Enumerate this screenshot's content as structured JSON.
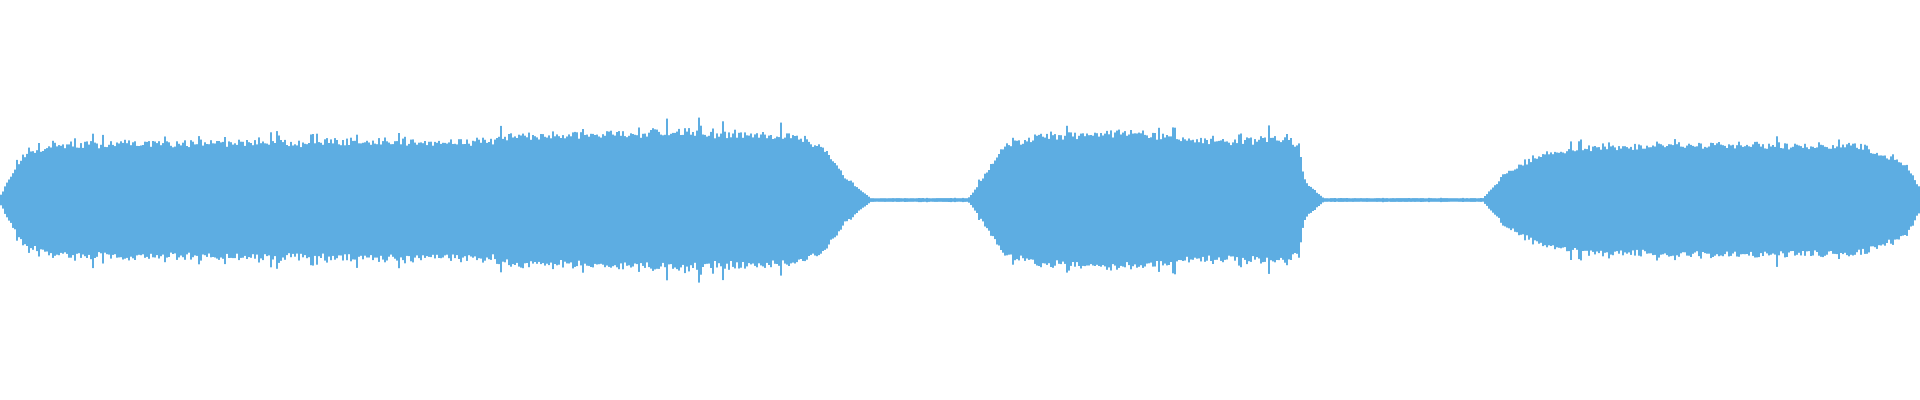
{
  "chart_data": {
    "type": "area",
    "title": "",
    "xlabel": "",
    "ylabel": "",
    "xlim": [
      0,
      100
    ],
    "ylim": [
      -1,
      1
    ],
    "grid": false,
    "color": "#5dade2",
    "background": "#ffffff",
    "envelope": {
      "x": [
        0,
        0.6,
        1.3,
        2.5,
        6.4,
        25.5,
        26.5,
        35.7,
        41.5,
        42.7,
        44.0,
        45.3,
        50.4,
        51.0,
        52.3,
        54.2,
        59.3,
        61.2,
        63.8,
        67.0,
        67.6,
        67.9,
        68.9,
        77.2,
        78.4,
        80.4,
        82.9,
        89.3,
        96.9,
        99.2,
        100
      ],
      "amplitude": [
        0.03,
        0.15,
        0.25,
        0.3,
        0.31,
        0.32,
        0.35,
        0.37,
        0.34,
        0.3,
        0.12,
        0.01,
        0.01,
        0.1,
        0.3,
        0.35,
        0.37,
        0.33,
        0.32,
        0.34,
        0.3,
        0.1,
        0.01,
        0.01,
        0.15,
        0.25,
        0.29,
        0.3,
        0.29,
        0.2,
        0.05
      ]
    }
  }
}
